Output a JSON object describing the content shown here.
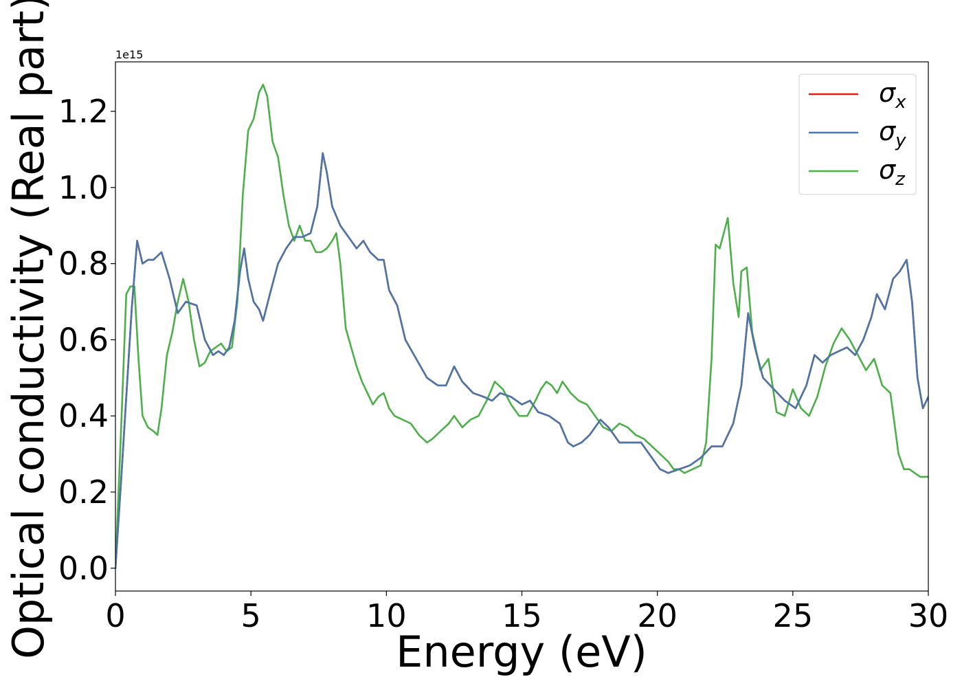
{
  "chart_data": {
    "type": "line",
    "title": "",
    "xlabel": "Energy (eV)",
    "ylabel": "Optical conductivity (Real part)",
    "xlim": [
      0,
      30
    ],
    "ylim": [
      -0.06,
      1.33
    ],
    "y_offset_text": "1e15",
    "x_ticks": [
      "0",
      "5",
      "10",
      "15",
      "20",
      "25",
      "30"
    ],
    "y_ticks": [
      "0.0",
      "0.2",
      "0.4",
      "0.6",
      "0.8",
      "1.0",
      "1.2"
    ],
    "grid": false,
    "legend_position": "top-right",
    "series": [
      {
        "name": "σx",
        "symbol": "σ",
        "subscript": "x",
        "color": "#e41a1c",
        "x": [
          0,
          0.2,
          0.4,
          0.6,
          0.8,
          1.0,
          1.2,
          1.4,
          1.7,
          2.0,
          2.3,
          2.6,
          3.0,
          3.3,
          3.6,
          3.8,
          4.0,
          4.2,
          4.4,
          4.6,
          4.75,
          4.9,
          5.1,
          5.3,
          5.45,
          5.7,
          6.0,
          6.3,
          6.6,
          6.9,
          7.2,
          7.45,
          7.65,
          7.8,
          8.0,
          8.3,
          8.6,
          8.9,
          9.15,
          9.4,
          9.7,
          9.9,
          10.1,
          10.4,
          10.7,
          11.1,
          11.5,
          11.9,
          12.2,
          12.5,
          12.8,
          13.2,
          13.6,
          13.9,
          14.2,
          14.6,
          15.0,
          15.3,
          15.6,
          16.0,
          16.4,
          16.7,
          16.9,
          17.2,
          17.5,
          17.9,
          18.2,
          18.6,
          19.0,
          19.4,
          19.8,
          20.1,
          20.4,
          20.8,
          21.2,
          21.6,
          22.0,
          22.4,
          22.8,
          23.1,
          23.35,
          23.6,
          23.9,
          24.3,
          24.7,
          25.1,
          25.5,
          25.8,
          26.1,
          26.4,
          26.7,
          27.0,
          27.3,
          27.6,
          27.9,
          28.1,
          28.4,
          28.7,
          28.95,
          29.2,
          29.4,
          29.6,
          29.8,
          30
        ],
        "y": [
          0.0,
          0.22,
          0.45,
          0.68,
          0.86,
          0.8,
          0.81,
          0.81,
          0.83,
          0.76,
          0.67,
          0.7,
          0.69,
          0.6,
          0.56,
          0.57,
          0.56,
          0.58,
          0.65,
          0.78,
          0.84,
          0.76,
          0.7,
          0.68,
          0.65,
          0.72,
          0.8,
          0.84,
          0.87,
          0.87,
          0.88,
          0.95,
          1.09,
          1.04,
          0.95,
          0.9,
          0.87,
          0.84,
          0.86,
          0.83,
          0.81,
          0.81,
          0.73,
          0.69,
          0.6,
          0.55,
          0.5,
          0.48,
          0.48,
          0.53,
          0.49,
          0.46,
          0.45,
          0.44,
          0.46,
          0.45,
          0.43,
          0.44,
          0.41,
          0.4,
          0.38,
          0.33,
          0.32,
          0.33,
          0.35,
          0.39,
          0.37,
          0.33,
          0.33,
          0.33,
          0.29,
          0.26,
          0.25,
          0.26,
          0.27,
          0.29,
          0.32,
          0.32,
          0.38,
          0.48,
          0.67,
          0.58,
          0.5,
          0.47,
          0.44,
          0.42,
          0.48,
          0.56,
          0.54,
          0.56,
          0.57,
          0.58,
          0.56,
          0.6,
          0.66,
          0.72,
          0.68,
          0.76,
          0.78,
          0.81,
          0.7,
          0.5,
          0.42,
          0.45
        ]
      },
      {
        "name": "σy",
        "symbol": "σ",
        "subscript": "y",
        "color": "#4a76a8",
        "x": [
          0,
          0.2,
          0.4,
          0.6,
          0.8,
          1.0,
          1.2,
          1.4,
          1.7,
          2.0,
          2.3,
          2.6,
          3.0,
          3.3,
          3.6,
          3.8,
          4.0,
          4.2,
          4.4,
          4.6,
          4.75,
          4.9,
          5.1,
          5.3,
          5.45,
          5.7,
          6.0,
          6.3,
          6.6,
          6.9,
          7.2,
          7.45,
          7.65,
          7.8,
          8.0,
          8.3,
          8.6,
          8.9,
          9.15,
          9.4,
          9.7,
          9.9,
          10.1,
          10.4,
          10.7,
          11.1,
          11.5,
          11.9,
          12.2,
          12.5,
          12.8,
          13.2,
          13.6,
          13.9,
          14.2,
          14.6,
          15.0,
          15.3,
          15.6,
          16.0,
          16.4,
          16.7,
          16.9,
          17.2,
          17.5,
          17.9,
          18.2,
          18.6,
          19.0,
          19.4,
          19.8,
          20.1,
          20.4,
          20.8,
          21.2,
          21.6,
          22.0,
          22.4,
          22.8,
          23.1,
          23.35,
          23.6,
          23.9,
          24.3,
          24.7,
          25.1,
          25.5,
          25.8,
          26.1,
          26.4,
          26.7,
          27.0,
          27.3,
          27.6,
          27.9,
          28.1,
          28.4,
          28.7,
          28.95,
          29.2,
          29.4,
          29.6,
          29.8,
          30
        ],
        "y": [
          0.0,
          0.22,
          0.45,
          0.68,
          0.86,
          0.8,
          0.81,
          0.81,
          0.83,
          0.76,
          0.67,
          0.7,
          0.69,
          0.6,
          0.56,
          0.57,
          0.56,
          0.58,
          0.65,
          0.78,
          0.84,
          0.76,
          0.7,
          0.68,
          0.65,
          0.72,
          0.8,
          0.84,
          0.87,
          0.87,
          0.88,
          0.95,
          1.09,
          1.04,
          0.95,
          0.9,
          0.87,
          0.84,
          0.86,
          0.83,
          0.81,
          0.81,
          0.73,
          0.69,
          0.6,
          0.55,
          0.5,
          0.48,
          0.48,
          0.53,
          0.49,
          0.46,
          0.45,
          0.44,
          0.46,
          0.45,
          0.43,
          0.44,
          0.41,
          0.4,
          0.38,
          0.33,
          0.32,
          0.33,
          0.35,
          0.39,
          0.37,
          0.33,
          0.33,
          0.33,
          0.29,
          0.26,
          0.25,
          0.26,
          0.27,
          0.29,
          0.32,
          0.32,
          0.38,
          0.48,
          0.67,
          0.58,
          0.5,
          0.47,
          0.44,
          0.42,
          0.48,
          0.56,
          0.54,
          0.56,
          0.57,
          0.58,
          0.56,
          0.6,
          0.66,
          0.72,
          0.68,
          0.76,
          0.78,
          0.81,
          0.7,
          0.5,
          0.42,
          0.45
        ]
      },
      {
        "name": "σz",
        "symbol": "σ",
        "subscript": "z",
        "color": "#4daf4a",
        "x": [
          0,
          0.2,
          0.4,
          0.55,
          0.7,
          0.85,
          1.0,
          1.2,
          1.4,
          1.55,
          1.7,
          1.9,
          2.1,
          2.3,
          2.5,
          2.7,
          2.9,
          3.1,
          3.3,
          3.5,
          3.7,
          3.9,
          4.1,
          4.3,
          4.5,
          4.7,
          4.9,
          5.1,
          5.3,
          5.45,
          5.6,
          5.8,
          6.0,
          6.2,
          6.4,
          6.6,
          6.8,
          7.0,
          7.2,
          7.4,
          7.6,
          7.8,
          8.0,
          8.15,
          8.3,
          8.5,
          8.7,
          8.9,
          9.1,
          9.3,
          9.5,
          9.7,
          9.9,
          10.1,
          10.3,
          10.6,
          10.9,
          11.2,
          11.5,
          11.7,
          12.0,
          12.3,
          12.5,
          12.8,
          13.1,
          13.4,
          13.7,
          14.0,
          14.3,
          14.6,
          14.9,
          15.2,
          15.5,
          15.7,
          15.9,
          16.1,
          16.3,
          16.5,
          16.8,
          17.1,
          17.4,
          17.7,
          18.0,
          18.3,
          18.6,
          18.9,
          19.2,
          19.5,
          19.8,
          20.1,
          20.4,
          20.6,
          20.8,
          21.0,
          21.3,
          21.6,
          21.8,
          22.0,
          22.15,
          22.3,
          22.45,
          22.6,
          22.8,
          23.0,
          23.1,
          23.3,
          23.5,
          23.8,
          24.1,
          24.4,
          24.7,
          25.0,
          25.3,
          25.6,
          25.9,
          26.2,
          26.5,
          26.8,
          27.1,
          27.4,
          27.7,
          28.0,
          28.3,
          28.6,
          28.9,
          29.1,
          29.3,
          29.5,
          29.7,
          30
        ],
        "y": [
          0.0,
          0.35,
          0.72,
          0.74,
          0.74,
          0.55,
          0.4,
          0.37,
          0.36,
          0.35,
          0.42,
          0.56,
          0.62,
          0.7,
          0.76,
          0.7,
          0.6,
          0.53,
          0.54,
          0.57,
          0.58,
          0.59,
          0.57,
          0.58,
          0.7,
          0.98,
          1.15,
          1.18,
          1.25,
          1.27,
          1.24,
          1.12,
          1.08,
          0.98,
          0.9,
          0.86,
          0.9,
          0.86,
          0.86,
          0.83,
          0.83,
          0.84,
          0.86,
          0.88,
          0.8,
          0.63,
          0.58,
          0.53,
          0.49,
          0.46,
          0.43,
          0.45,
          0.46,
          0.42,
          0.4,
          0.39,
          0.38,
          0.35,
          0.33,
          0.34,
          0.36,
          0.38,
          0.4,
          0.37,
          0.39,
          0.4,
          0.44,
          0.49,
          0.47,
          0.43,
          0.4,
          0.4,
          0.44,
          0.47,
          0.49,
          0.48,
          0.46,
          0.49,
          0.46,
          0.44,
          0.43,
          0.4,
          0.37,
          0.36,
          0.38,
          0.37,
          0.35,
          0.34,
          0.32,
          0.3,
          0.28,
          0.26,
          0.26,
          0.25,
          0.26,
          0.27,
          0.33,
          0.55,
          0.85,
          0.84,
          0.88,
          0.92,
          0.75,
          0.66,
          0.78,
          0.79,
          0.62,
          0.52,
          0.55,
          0.41,
          0.4,
          0.47,
          0.42,
          0.4,
          0.45,
          0.53,
          0.59,
          0.63,
          0.6,
          0.56,
          0.52,
          0.55,
          0.48,
          0.46,
          0.3,
          0.26,
          0.26,
          0.25,
          0.24,
          0.24
        ]
      }
    ]
  }
}
